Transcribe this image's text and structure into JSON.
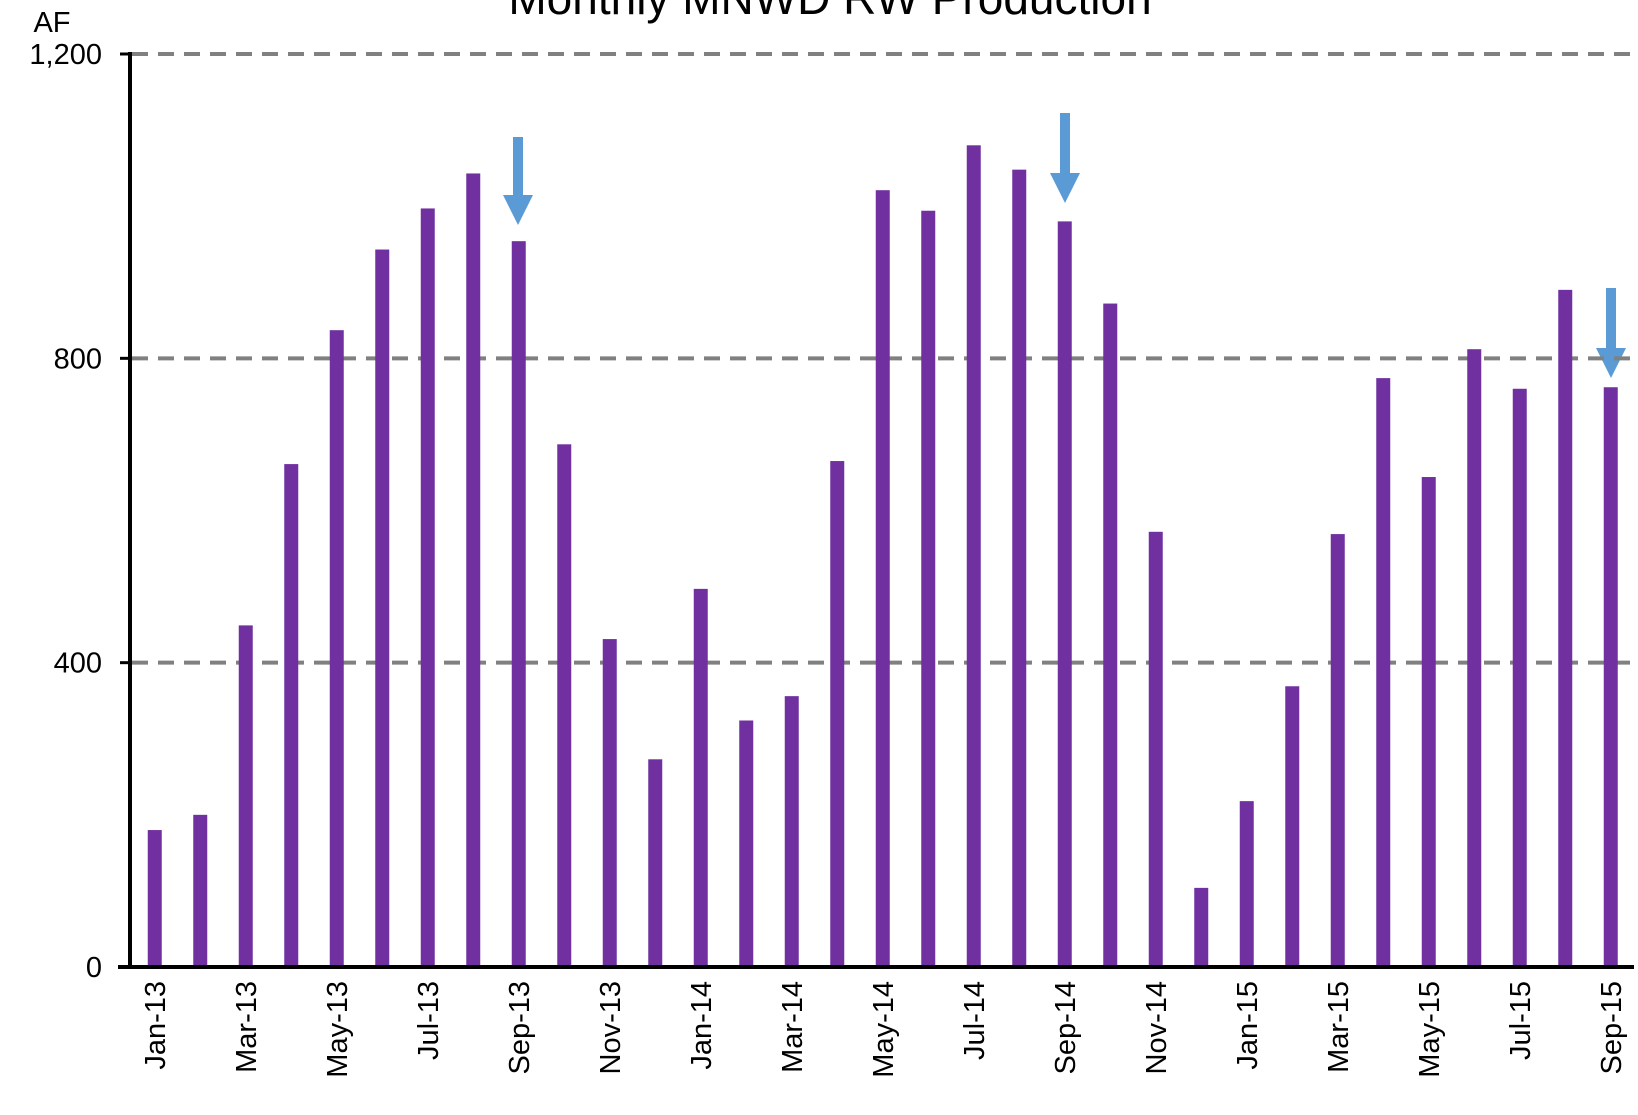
{
  "chart_data": {
    "type": "bar",
    "title": "Monthly MNWD RW Production",
    "y_label": "AF",
    "categories": [
      "Jan-13",
      null,
      "Mar-13",
      null,
      "May-13",
      null,
      "Jul-13",
      null,
      "Sep-13",
      null,
      "Nov-13",
      null,
      "Jan-14",
      null,
      "Mar-14",
      null,
      "May-14",
      null,
      "Jul-14",
      null,
      "Sep-14",
      null,
      "Nov-14",
      null,
      "Jan-15",
      null,
      "Mar-15",
      null,
      "May-15",
      null,
      "Jul-15",
      null,
      "Sep-15"
    ],
    "values": [
      180,
      200,
      449,
      661,
      837,
      943,
      997,
      1043,
      954,
      687,
      431,
      273,
      497,
      324,
      356,
      665,
      1021,
      994,
      1080,
      1048,
      980,
      872,
      572,
      104,
      218,
      369,
      569,
      774,
      644,
      812,
      760,
      890,
      762
    ],
    "color": "#7030a0",
    "ylim": [
      0,
      1200
    ],
    "yticks": [
      0,
      400,
      800,
      {
        "value": 1200,
        "label": "1,200"
      }
    ],
    "grid": true
  }
}
